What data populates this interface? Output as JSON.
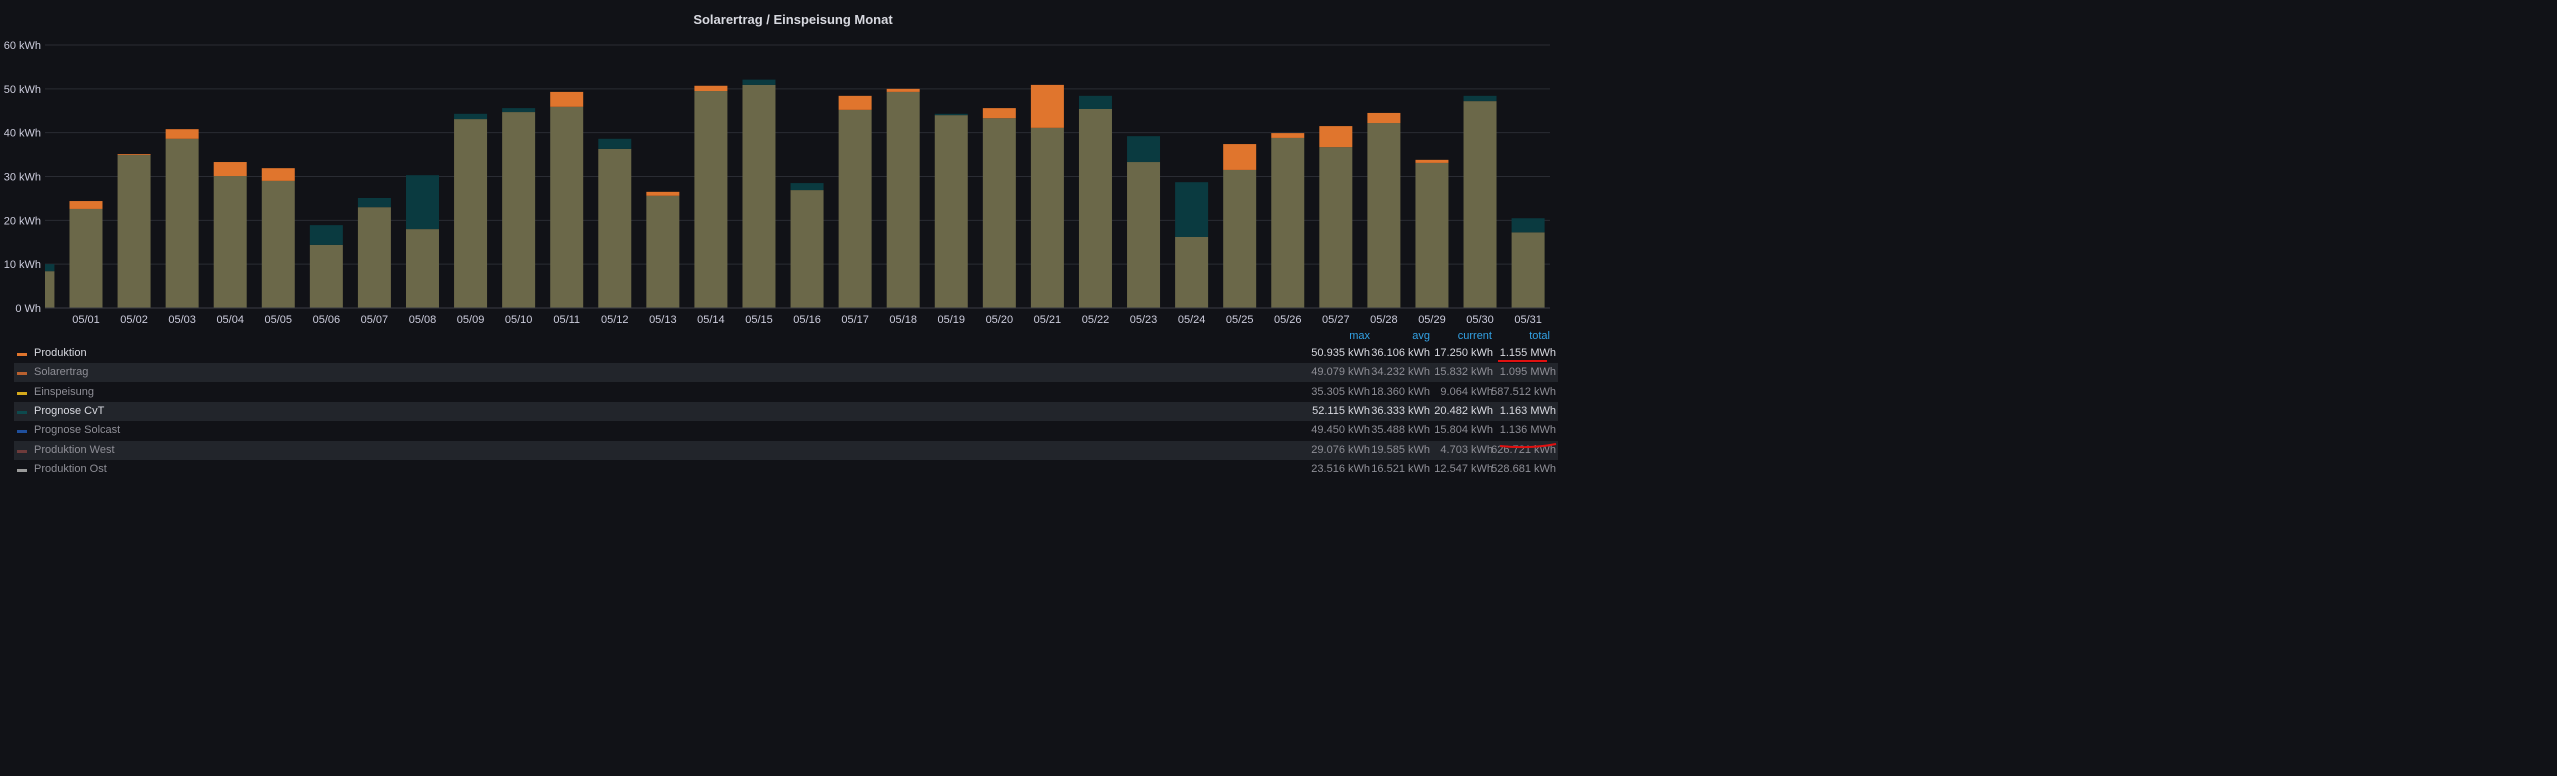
{
  "panel": {
    "title": "Solarertrag / Einspeisung Monat"
  },
  "colors": {
    "background": "#111217",
    "grid": "#2a2c33",
    "overlap": "#6b6849",
    "header": "#33a2e5",
    "annotation": "#e01010"
  },
  "chart_data": {
    "type": "bar",
    "title": "Solarertrag / Einspeisung Monat",
    "ylim": [
      0,
      60
    ],
    "yticks": [
      "0 Wh",
      "10 kWh",
      "20 kWh",
      "30 kWh",
      "40 kWh",
      "50 kWh",
      "60 kWh"
    ],
    "grid": true,
    "overlay": true,
    "legend_placement": "bottom",
    "categories": [
      "",
      "05/01",
      "05/02",
      "05/03",
      "05/04",
      "05/05",
      "05/06",
      "05/07",
      "05/08",
      "05/09",
      "05/10",
      "05/11",
      "05/12",
      "05/13",
      "05/14",
      "05/15",
      "05/16",
      "05/17",
      "05/18",
      "05/19",
      "05/20",
      "05/21",
      "05/22",
      "05/23",
      "05/24",
      "05/25",
      "05/26",
      "05/27",
      "05/28",
      "05/29",
      "05/30",
      "05/31"
    ],
    "series": [
      {
        "name": "Produktion",
        "color": "#e0752d",
        "values": [
          8.4,
          24.4,
          35.1,
          40.8,
          33.3,
          31.9,
          14.4,
          23.0,
          18.0,
          43.1,
          44.7,
          49.3,
          36.3,
          26.5,
          50.7,
          50.9,
          26.9,
          48.4,
          50.0,
          44.0,
          45.6,
          50.9,
          45.4,
          33.3,
          16.2,
          37.4,
          39.9,
          41.5,
          44.5,
          33.8,
          47.2,
          17.25
        ]
      },
      {
        "name": "Prognose CvT",
        "color": "#0a3a40",
        "values": [
          10.0,
          22.6,
          34.9,
          38.6,
          30.1,
          29.0,
          18.9,
          25.1,
          30.3,
          44.3,
          45.6,
          45.9,
          38.6,
          25.6,
          49.5,
          52.1,
          28.5,
          45.2,
          49.3,
          44.3,
          43.3,
          41.1,
          48.4,
          39.2,
          28.7,
          31.5,
          38.8,
          36.7,
          42.2,
          33.1,
          48.4,
          20.48
        ]
      }
    ]
  },
  "legend": {
    "headers": [
      "max",
      "avg",
      "current",
      "total"
    ],
    "rows": [
      {
        "name": "Produktion",
        "color": "#e0752d",
        "max": "50.935 kWh",
        "avg": "36.106 kWh",
        "current": "17.250 kWh",
        "total": "1.155 MWh",
        "highlight": true
      },
      {
        "name": "Solarertrag",
        "color": "#b8602f",
        "max": "49.079 kWh",
        "avg": "34.232 kWh",
        "current": "15.832 kWh",
        "total": "1.095 MWh",
        "highlight": false
      },
      {
        "name": "Einspeisung",
        "color": "#d4a91c",
        "max": "35.305 kWh",
        "avg": "18.360 kWh",
        "current": "9.064 kWh",
        "total": "587.512 kWh",
        "highlight": false
      },
      {
        "name": "Prognose CvT",
        "color": "#0d4a4e",
        "max": "52.115 kWh",
        "avg": "36.333 kWh",
        "current": "20.482 kWh",
        "total": "1.163 MWh",
        "highlight": true
      },
      {
        "name": "Prognose Solcast",
        "color": "#1f4f9c",
        "max": "49.450 kWh",
        "avg": "35.488 kWh",
        "current": "15.804 kWh",
        "total": "1.136 MWh",
        "highlight": false
      },
      {
        "name": "Produktion West",
        "color": "#6e3b3b",
        "max": "29.076 kWh",
        "avg": "19.585 kWh",
        "current": "4.703 kWh",
        "total": "626.721 kWh",
        "highlight": false
      },
      {
        "name": "Produktion Ost",
        "color": "#9a9a9a",
        "max": "23.516 kWh",
        "avg": "16.521 kWh",
        "current": "12.547 kWh",
        "total": "528.681 kWh",
        "highlight": false
      }
    ]
  }
}
